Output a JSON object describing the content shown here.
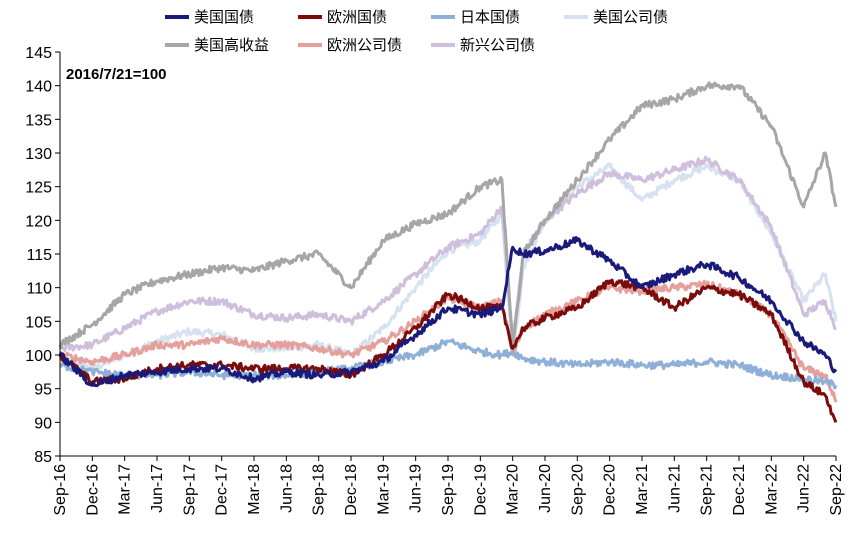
{
  "chart_data": {
    "type": "line",
    "title": "",
    "xlabel": "",
    "ylabel": "",
    "annotation": "2016/7/21=100",
    "ylim": [
      85,
      145
    ],
    "yticks": [
      85,
      90,
      95,
      100,
      105,
      110,
      115,
      120,
      125,
      130,
      135,
      140,
      145
    ],
    "xlim": [
      "2016-09",
      "2022-09"
    ],
    "xticks": [
      "Sep-16",
      "Dec-16",
      "Mar-17",
      "Jun-17",
      "Sep-17",
      "Dec-17",
      "Mar-18",
      "Jun-18",
      "Sep-18",
      "Dec-18",
      "Mar-19",
      "Jun-19",
      "Sep-19",
      "Dec-19",
      "Mar-20",
      "Jun-20",
      "Sep-20",
      "Dec-20",
      "Mar-21",
      "Jun-21",
      "Sep-21",
      "Dec-21",
      "Mar-22",
      "Jun-22",
      "Sep-22"
    ],
    "legend_position": "top",
    "x": [
      "2016-09",
      "2016-12",
      "2017-03",
      "2017-06",
      "2017-09",
      "2017-12",
      "2018-03",
      "2018-06",
      "2018-09",
      "2018-12",
      "2019-03",
      "2019-06",
      "2019-09",
      "2019-12",
      "2020-02",
      "2020-03",
      "2020-04",
      "2020-06",
      "2020-09",
      "2020-12",
      "2021-03",
      "2021-06",
      "2021-09",
      "2021-12",
      "2022-03",
      "2022-06",
      "2022-08",
      "2022-09"
    ],
    "series": [
      {
        "name": "美国国债",
        "color": "#1a1a7a",
        "values": [
          100,
          95.5,
          97,
          97.5,
          98,
          98,
          96.5,
          97.5,
          97,
          97.5,
          99,
          103,
          107,
          106,
          107,
          116,
          115,
          115.5,
          117,
          114,
          110,
          112,
          113.5,
          111.5,
          108,
          102,
          100,
          97.5
        ]
      },
      {
        "name": "欧洲国债",
        "color": "#7b0c0c",
        "values": [
          100,
          96,
          96.5,
          98,
          98.5,
          98.5,
          98,
          98,
          98,
          97,
          100,
          104,
          109,
          107,
          107,
          101,
          104,
          105.5,
          107,
          111,
          110,
          107,
          110,
          109,
          106,
          96,
          94,
          90
        ]
      },
      {
        "name": "日本国债",
        "color": "#8eb0d8",
        "values": [
          98.5,
          97.5,
          97,
          97,
          97.5,
          97,
          97,
          97,
          97.5,
          98,
          99,
          100,
          102,
          100.5,
          100,
          100.5,
          99.5,
          99,
          98.5,
          99,
          98.5,
          98.5,
          99,
          98.5,
          97,
          96.5,
          96,
          95.5
        ]
      },
      {
        "name": "美国公司债",
        "color": "#d6e2f0",
        "values": [
          99.5,
          98,
          100,
          102,
          103.5,
          103,
          101,
          101,
          101.5,
          100,
          104,
          110,
          115.5,
          117,
          121,
          100,
          113,
          120,
          125,
          128,
          123,
          126,
          128,
          126,
          118,
          108,
          112,
          105
        ]
      },
      {
        "name": "美国高收益",
        "color": "#a6a6a6",
        "values": [
          101.5,
          104.5,
          109,
          111,
          112,
          113,
          112.5,
          114,
          115,
          110,
          117,
          119.5,
          121,
          125,
          126,
          101,
          115,
          120,
          126,
          132,
          137,
          138,
          140,
          140,
          134,
          122,
          130,
          122
        ]
      },
      {
        "name": "欧洲公司债",
        "color": "#e6a09c",
        "values": [
          100,
          99,
          100,
          101.5,
          101.5,
          102.5,
          101.5,
          101.5,
          101,
          100,
          102,
          105,
          108.5,
          107,
          108,
          100,
          104,
          106,
          108,
          110,
          109.5,
          110,
          110.5,
          109,
          106,
          98,
          97,
          93
        ]
      },
      {
        "name": "新兴公司债",
        "color": "#cfbfdc",
        "values": [
          101,
          101.5,
          104,
          106.5,
          108,
          108,
          106,
          105.5,
          106,
          105,
          108,
          112,
          116,
          118,
          122,
          102,
          115,
          120,
          124,
          127,
          126,
          127.5,
          129,
          126,
          119,
          106,
          108,
          104
        ]
      }
    ]
  }
}
